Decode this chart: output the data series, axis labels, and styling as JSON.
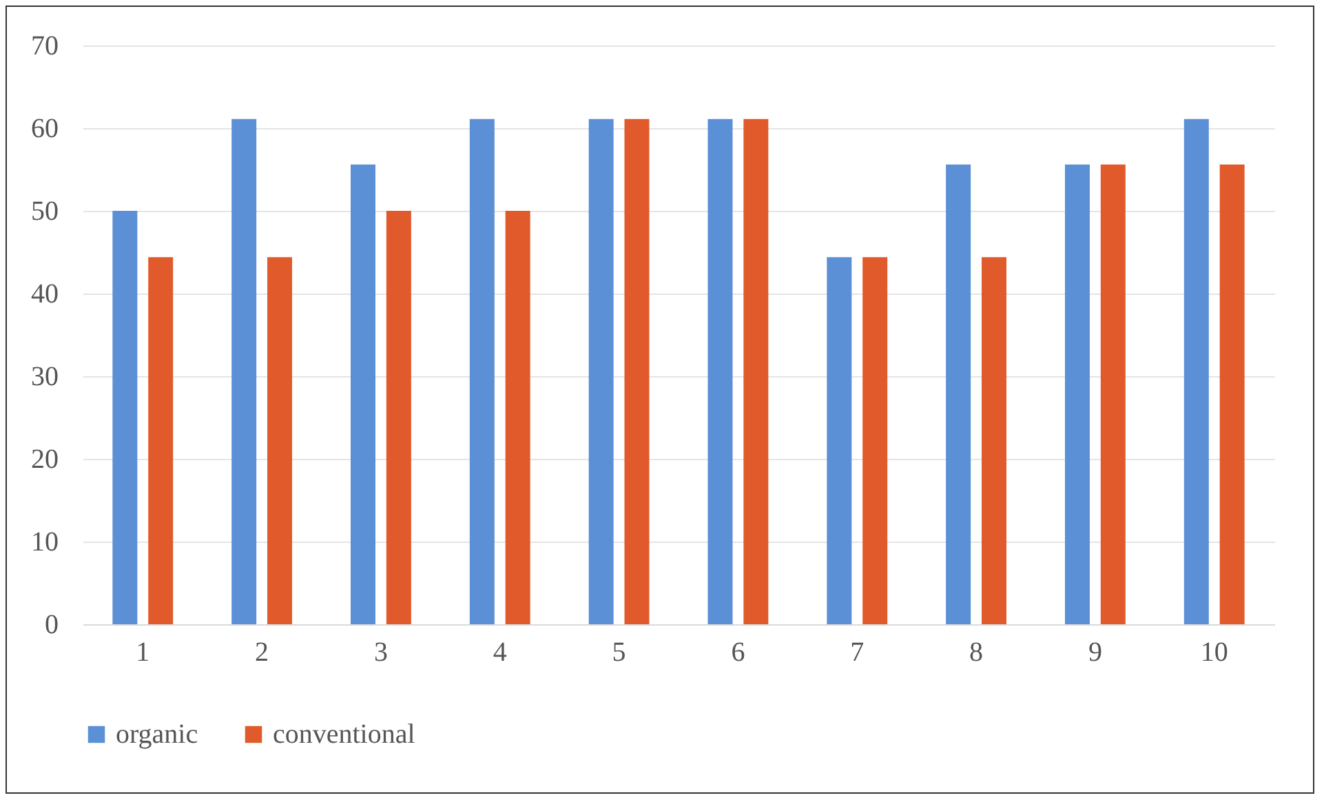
{
  "chart_data": {
    "type": "bar",
    "categories": [
      "1",
      "2",
      "3",
      "4",
      "5",
      "6",
      "7",
      "8",
      "9",
      "10"
    ],
    "series": [
      {
        "name": "organic",
        "color": "#5b8fd6",
        "values": [
          50,
          61.1,
          55.6,
          61.1,
          61.1,
          61.1,
          44.4,
          55.6,
          55.6,
          61.1
        ]
      },
      {
        "name": "conventional",
        "color": "#e05a2b",
        "values": [
          44.4,
          44.4,
          50,
          50,
          61.1,
          61.1,
          44.4,
          44.4,
          55.6,
          55.6
        ]
      }
    ],
    "ylim": [
      0,
      70
    ],
    "yticks": [
      0,
      10,
      20,
      30,
      40,
      50,
      60,
      70
    ],
    "grid": "y",
    "legend": "bottom"
  }
}
